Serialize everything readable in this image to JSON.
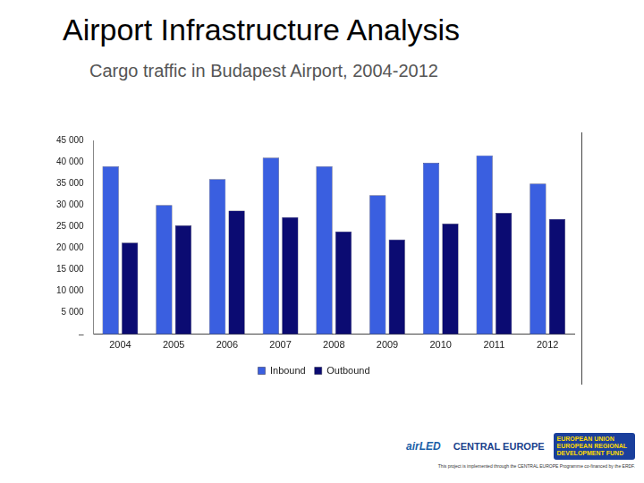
{
  "title": "Airport Infrastructure Analysis",
  "subtitle": "Cargo traffic in Budapest Airport, 2004-2012",
  "chart_data": {
    "type": "bar",
    "categories": [
      "2004",
      "2005",
      "2006",
      "2007",
      "2008",
      "2009",
      "2010",
      "2011",
      "2012"
    ],
    "series": [
      {
        "name": "Inbound",
        "color": "#3a5fe0",
        "values": [
          39000,
          30000,
          36000,
          41000,
          39000,
          32300,
          39800,
          41500,
          35000
        ]
      },
      {
        "name": "Outbound",
        "color": "#0b0b72",
        "values": [
          21300,
          25300,
          28700,
          27200,
          23900,
          22000,
          25700,
          28200,
          26800
        ]
      }
    ],
    "ylim": [
      0,
      45000
    ],
    "yticks": [
      {
        "value": 0,
        "label": "–"
      },
      {
        "value": 5000,
        "label": "5 000"
      },
      {
        "value": 10000,
        "label": "10 000"
      },
      {
        "value": 15000,
        "label": "15 000"
      },
      {
        "value": 20000,
        "label": "20 000"
      },
      {
        "value": 25000,
        "label": "25 000"
      },
      {
        "value": 30000,
        "label": "30 000"
      },
      {
        "value": 35000,
        "label": "35 000"
      },
      {
        "value": 40000,
        "label": "40 000"
      },
      {
        "value": 45000,
        "label": "45 000"
      }
    ],
    "grid": false,
    "legend": "bottom"
  },
  "footer": {
    "logos": [
      "airLED",
      "CENTRAL EUROPE",
      "EUROPEAN UNION EUROPEAN REGIONAL DEVELOPMENT FUND"
    ],
    "note": "This project is implemented through the CENTRAL EUROPE Programme co-financed by the ERDF."
  }
}
